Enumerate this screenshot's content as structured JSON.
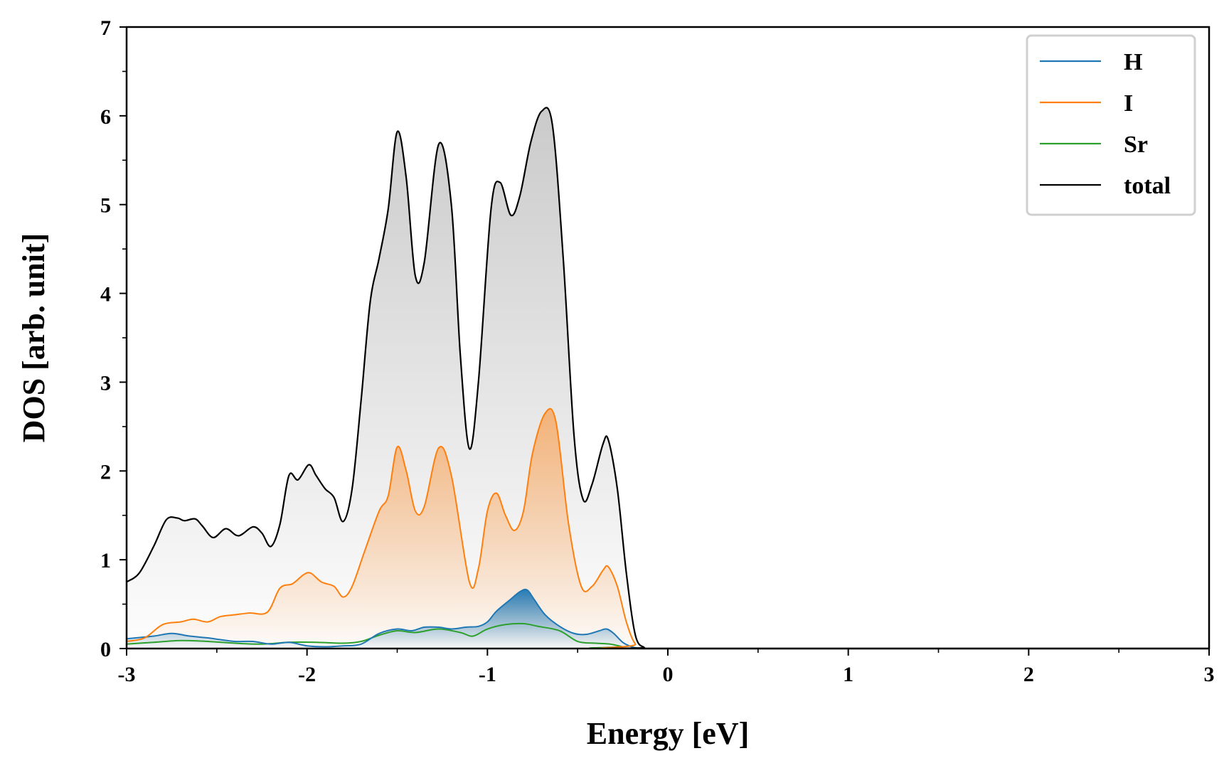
{
  "chart_data": {
    "type": "area",
    "xlabel": "Energy [eV]",
    "ylabel": "DOS [arb. unit]",
    "xlim": [
      -3,
      3
    ],
    "ylim": [
      0,
      7
    ],
    "x_ticks": [
      -3,
      -2,
      -1,
      0,
      1,
      2,
      3
    ],
    "x_tick_labels": [
      "-3",
      "-2",
      "-1",
      "0",
      "1",
      "2",
      "3"
    ],
    "y_ticks": [
      0,
      1,
      2,
      3,
      4,
      5,
      6,
      7
    ],
    "y_tick_labels": [
      "0",
      "1",
      "2",
      "3",
      "4",
      "5",
      "6",
      "7"
    ],
    "x_minor_step": 0.5,
    "y_minor_step": 0.5,
    "grid": false,
    "legend_position": "top-right",
    "series": [
      {
        "name": "H",
        "color": "#1f77b4",
        "fill": true,
        "points": [
          [
            -3.0,
            0.11
          ],
          [
            -2.85,
            0.14
          ],
          [
            -2.75,
            0.17
          ],
          [
            -2.65,
            0.14
          ],
          [
            -2.55,
            0.12
          ],
          [
            -2.48,
            0.1
          ],
          [
            -2.4,
            0.08
          ],
          [
            -2.3,
            0.08
          ],
          [
            -2.2,
            0.05
          ],
          [
            -2.1,
            0.07
          ],
          [
            -2.0,
            0.03
          ],
          [
            -1.9,
            0.02
          ],
          [
            -1.8,
            0.03
          ],
          [
            -1.7,
            0.05
          ],
          [
            -1.6,
            0.17
          ],
          [
            -1.5,
            0.22
          ],
          [
            -1.42,
            0.2
          ],
          [
            -1.35,
            0.24
          ],
          [
            -1.27,
            0.24
          ],
          [
            -1.2,
            0.22
          ],
          [
            -1.12,
            0.24
          ],
          [
            -1.05,
            0.25
          ],
          [
            -1.0,
            0.3
          ],
          [
            -0.95,
            0.42
          ],
          [
            -0.88,
            0.54
          ],
          [
            -0.82,
            0.64
          ],
          [
            -0.78,
            0.66
          ],
          [
            -0.74,
            0.55
          ],
          [
            -0.68,
            0.38
          ],
          [
            -0.6,
            0.25
          ],
          [
            -0.52,
            0.17
          ],
          [
            -0.45,
            0.16
          ],
          [
            -0.38,
            0.2
          ],
          [
            -0.34,
            0.22
          ],
          [
            -0.3,
            0.17
          ],
          [
            -0.25,
            0.07
          ],
          [
            -0.2,
            0.02
          ],
          [
            -0.15,
            0.0
          ],
          [
            -0.1,
            0.0
          ],
          [
            3.0,
            0.0
          ]
        ]
      },
      {
        "name": "I",
        "color": "#ff7f0e",
        "fill": true,
        "points": [
          [
            -3.0,
            0.08
          ],
          [
            -2.9,
            0.12
          ],
          [
            -2.8,
            0.27
          ],
          [
            -2.7,
            0.3
          ],
          [
            -2.63,
            0.33
          ],
          [
            -2.55,
            0.3
          ],
          [
            -2.48,
            0.36
          ],
          [
            -2.4,
            0.38
          ],
          [
            -2.32,
            0.4
          ],
          [
            -2.22,
            0.41
          ],
          [
            -2.15,
            0.68
          ],
          [
            -2.08,
            0.73
          ],
          [
            -2.02,
            0.83
          ],
          [
            -1.98,
            0.85
          ],
          [
            -1.92,
            0.75
          ],
          [
            -1.85,
            0.7
          ],
          [
            -1.8,
            0.58
          ],
          [
            -1.75,
            0.7
          ],
          [
            -1.68,
            1.1
          ],
          [
            -1.6,
            1.55
          ],
          [
            -1.55,
            1.72
          ],
          [
            -1.5,
            2.27
          ],
          [
            -1.45,
            2.0
          ],
          [
            -1.4,
            1.55
          ],
          [
            -1.35,
            1.6
          ],
          [
            -1.27,
            2.26
          ],
          [
            -1.2,
            1.95
          ],
          [
            -1.1,
            0.75
          ],
          [
            -1.05,
            0.9
          ],
          [
            -1.0,
            1.55
          ],
          [
            -0.95,
            1.75
          ],
          [
            -0.9,
            1.5
          ],
          [
            -0.85,
            1.33
          ],
          [
            -0.8,
            1.55
          ],
          [
            -0.75,
            2.2
          ],
          [
            -0.68,
            2.65
          ],
          [
            -0.62,
            2.55
          ],
          [
            -0.55,
            1.4
          ],
          [
            -0.48,
            0.7
          ],
          [
            -0.42,
            0.7
          ],
          [
            -0.36,
            0.88
          ],
          [
            -0.33,
            0.92
          ],
          [
            -0.28,
            0.7
          ],
          [
            -0.23,
            0.3
          ],
          [
            -0.18,
            0.05
          ],
          [
            -0.12,
            0.0
          ],
          [
            3.0,
            0.0
          ]
        ]
      },
      {
        "name": "Sr",
        "color": "#2ca02c",
        "fill": false,
        "points": [
          [
            -3.0,
            0.05
          ],
          [
            -2.85,
            0.07
          ],
          [
            -2.7,
            0.09
          ],
          [
            -2.55,
            0.08
          ],
          [
            -2.4,
            0.06
          ],
          [
            -2.25,
            0.05
          ],
          [
            -2.1,
            0.07
          ],
          [
            -1.95,
            0.07
          ],
          [
            -1.8,
            0.06
          ],
          [
            -1.7,
            0.08
          ],
          [
            -1.6,
            0.15
          ],
          [
            -1.5,
            0.2
          ],
          [
            -1.4,
            0.18
          ],
          [
            -1.27,
            0.22
          ],
          [
            -1.15,
            0.18
          ],
          [
            -1.08,
            0.14
          ],
          [
            -1.0,
            0.22
          ],
          [
            -0.9,
            0.27
          ],
          [
            -0.8,
            0.28
          ],
          [
            -0.72,
            0.25
          ],
          [
            -0.6,
            0.2
          ],
          [
            -0.5,
            0.08
          ],
          [
            -0.4,
            0.06
          ],
          [
            -0.32,
            0.05
          ],
          [
            -0.25,
            0.02
          ],
          [
            -0.18,
            0.0
          ],
          [
            3.0,
            0.0
          ]
        ]
      },
      {
        "name": "total",
        "color": "#000000",
        "fill": true,
        "points": [
          [
            -3.0,
            0.75
          ],
          [
            -2.93,
            0.85
          ],
          [
            -2.85,
            1.15
          ],
          [
            -2.78,
            1.45
          ],
          [
            -2.72,
            1.47
          ],
          [
            -2.68,
            1.44
          ],
          [
            -2.62,
            1.46
          ],
          [
            -2.58,
            1.38
          ],
          [
            -2.52,
            1.25
          ],
          [
            -2.45,
            1.35
          ],
          [
            -2.38,
            1.27
          ],
          [
            -2.3,
            1.37
          ],
          [
            -2.25,
            1.3
          ],
          [
            -2.2,
            1.15
          ],
          [
            -2.15,
            1.4
          ],
          [
            -2.1,
            1.95
          ],
          [
            -2.05,
            1.9
          ],
          [
            -1.99,
            2.07
          ],
          [
            -1.95,
            1.95
          ],
          [
            -1.9,
            1.8
          ],
          [
            -1.85,
            1.7
          ],
          [
            -1.8,
            1.43
          ],
          [
            -1.75,
            1.8
          ],
          [
            -1.7,
            2.8
          ],
          [
            -1.65,
            3.9
          ],
          [
            -1.6,
            4.4
          ],
          [
            -1.55,
            4.95
          ],
          [
            -1.5,
            5.82
          ],
          [
            -1.45,
            5.3
          ],
          [
            -1.4,
            4.2
          ],
          [
            -1.35,
            4.35
          ],
          [
            -1.27,
            5.68
          ],
          [
            -1.2,
            5.0
          ],
          [
            -1.15,
            3.3
          ],
          [
            -1.1,
            2.25
          ],
          [
            -1.05,
            3.0
          ],
          [
            -0.98,
            4.95
          ],
          [
            -0.93,
            5.25
          ],
          [
            -0.87,
            4.88
          ],
          [
            -0.82,
            5.1
          ],
          [
            -0.76,
            5.7
          ],
          [
            -0.7,
            6.05
          ],
          [
            -0.64,
            5.9
          ],
          [
            -0.58,
            4.4
          ],
          [
            -0.52,
            2.4
          ],
          [
            -0.47,
            1.68
          ],
          [
            -0.42,
            1.85
          ],
          [
            -0.36,
            2.3
          ],
          [
            -0.33,
            2.35
          ],
          [
            -0.28,
            1.8
          ],
          [
            -0.23,
            0.85
          ],
          [
            -0.18,
            0.15
          ],
          [
            -0.13,
            0.01
          ],
          [
            -0.1,
            0.0
          ],
          [
            3.0,
            0.0
          ]
        ]
      }
    ]
  }
}
